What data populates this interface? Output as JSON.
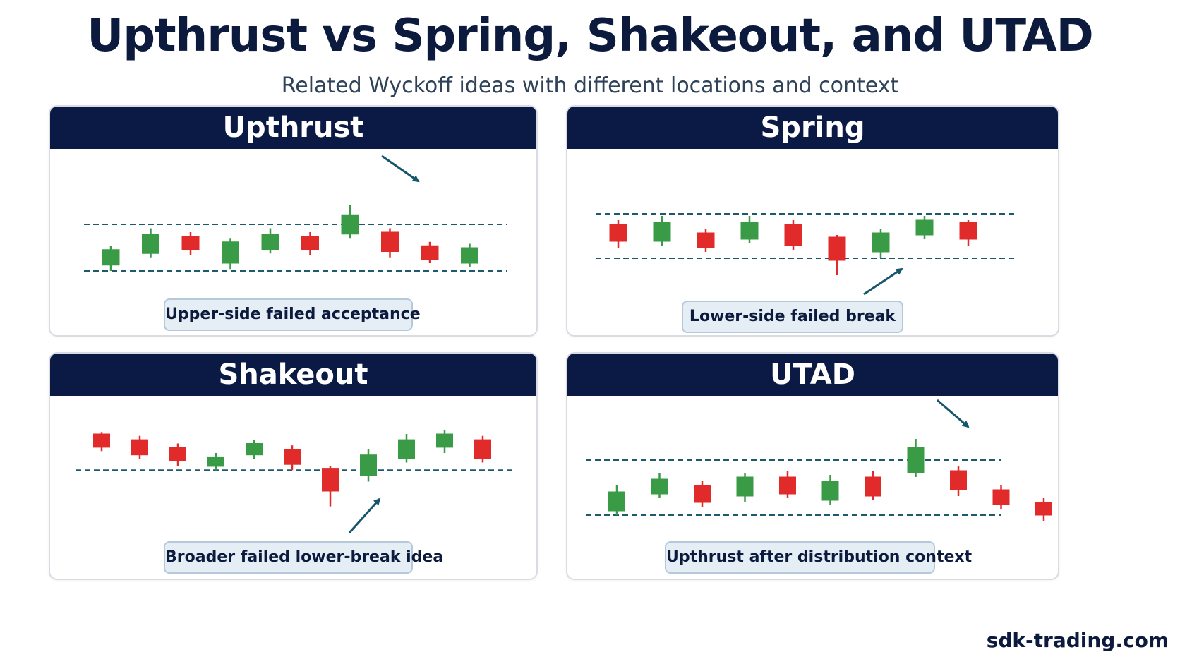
{
  "title": "Upthrust vs Spring, Shakeout, and UTAD",
  "subtitle": "Related Wyckoff ideas with different locations and context",
  "footer": "sdk-trading.com",
  "colors": {
    "navy": "#0b1a45",
    "bull": "#3a9b47",
    "bear": "#e12b2b",
    "dash": "#1d5a6b",
    "arrow": "#14566a",
    "caption_bg": "#e6eef5"
  },
  "panels": [
    {
      "id": "upthrust",
      "title": "Upthrust",
      "caption": "Upper-side failed acceptance",
      "candles": [
        {
          "dir": "up",
          "open": 1.5,
          "close": 5.5,
          "high": 6.5,
          "low": 0.0
        },
        {
          "dir": "up",
          "open": 4.5,
          "close": 9.5,
          "high": 11.0,
          "low": 3.5
        },
        {
          "dir": "down",
          "open": 9.0,
          "close": 5.5,
          "high": 10.0,
          "low": 4.0
        },
        {
          "dir": "up",
          "open": 2.0,
          "close": 7.5,
          "high": 8.5,
          "low": 0.5
        },
        {
          "dir": "up",
          "open": 5.5,
          "close": 9.5,
          "high": 11.0,
          "low": 4.5
        },
        {
          "dir": "down",
          "open": 9.0,
          "close": 5.5,
          "high": 10.0,
          "low": 4.0
        },
        {
          "dir": "up",
          "open": 9.5,
          "close": 14.5,
          "high": 17.0,
          "low": 8.5
        },
        {
          "dir": "down",
          "open": 10.0,
          "close": 5.0,
          "high": 11.0,
          "low": 3.5
        },
        {
          "dir": "down",
          "open": 6.5,
          "close": 3.0,
          "high": 7.5,
          "low": 2.0
        },
        {
          "dir": "up",
          "open": 2.0,
          "close": 6.0,
          "high": 7.0,
          "low": 1.0
        }
      ],
      "resistance": 12,
      "support": 0,
      "arrow": "down-right"
    },
    {
      "id": "spring",
      "title": "Spring",
      "caption": "Lower-side failed break",
      "candles": [
        {
          "dir": "down",
          "open": 8.5,
          "close": 4.5,
          "high": 9.5,
          "low": 3.0
        },
        {
          "dir": "up",
          "open": 4.5,
          "close": 9.0,
          "high": 10.5,
          "low": 3.5
        },
        {
          "dir": "down",
          "open": 6.5,
          "close": 3.0,
          "high": 7.5,
          "low": 2.0
        },
        {
          "dir": "up",
          "open": 5.0,
          "close": 9.0,
          "high": 10.5,
          "low": 4.0
        },
        {
          "dir": "down",
          "open": 8.5,
          "close": 3.5,
          "high": 9.5,
          "low": 2.5
        },
        {
          "dir": "down",
          "open": 5.5,
          "close": 0.0,
          "high": 6.0,
          "low": -3.5
        },
        {
          "dir": "up",
          "open": 2.0,
          "close": 6.5,
          "high": 7.5,
          "low": 0.5
        },
        {
          "dir": "up",
          "open": 6.0,
          "close": 9.5,
          "high": 10.5,
          "low": 5.0
        },
        {
          "dir": "down",
          "open": 9.0,
          "close": 5.0,
          "high": 9.5,
          "low": 3.5
        }
      ],
      "resistance": 11,
      "support": 0.5,
      "arrow": "up-right"
    },
    {
      "id": "shakeout",
      "title": "Shakeout",
      "caption": "Broader failed lower-break idea",
      "candles": [
        {
          "dir": "down",
          "open": 10.0,
          "close": 6.5,
          "high": 10.5,
          "low": 5.5
        },
        {
          "dir": "down",
          "open": 8.5,
          "close": 4.5,
          "high": 9.5,
          "low": 3.5
        },
        {
          "dir": "down",
          "open": 6.5,
          "close": 3.0,
          "high": 7.5,
          "low": 1.5
        },
        {
          "dir": "up",
          "open": 1.5,
          "close": 4.0,
          "high": 5.0,
          "low": 0.5
        },
        {
          "dir": "up",
          "open": 4.5,
          "close": 7.5,
          "high": 8.5,
          "low": 3.5
        },
        {
          "dir": "down",
          "open": 6.0,
          "close": 2.0,
          "high": 7.0,
          "low": 0.5
        },
        {
          "dir": "down",
          "open": 1.0,
          "close": -5.0,
          "high": 1.5,
          "low": -9.0
        },
        {
          "dir": "up",
          "open": -1.0,
          "close": 4.5,
          "high": 6.0,
          "low": -2.5
        },
        {
          "dir": "up",
          "open": 3.5,
          "close": 8.5,
          "high": 10.0,
          "low": 2.5
        },
        {
          "dir": "up",
          "open": 6.5,
          "close": 10.0,
          "high": 11.0,
          "low": 5.0
        },
        {
          "dir": "down",
          "open": 8.5,
          "close": 3.5,
          "high": 9.5,
          "low": 2.5
        }
      ],
      "support": 0.5,
      "arrow": "up-right"
    },
    {
      "id": "utad",
      "title": "UTAD",
      "caption": "Upthrust after distribution context",
      "candles": [
        {
          "dir": "up",
          "open": 1.0,
          "close": 5.5,
          "high": 7.0,
          "low": 0.0
        },
        {
          "dir": "up",
          "open": 5.0,
          "close": 8.5,
          "high": 10.0,
          "low": 4.0
        },
        {
          "dir": "down",
          "open": 7.0,
          "close": 3.0,
          "high": 8.0,
          "low": 2.0
        },
        {
          "dir": "up",
          "open": 4.5,
          "close": 9.0,
          "high": 10.0,
          "low": 3.0
        },
        {
          "dir": "down",
          "open": 9.0,
          "close": 5.0,
          "high": 10.5,
          "low": 4.0
        },
        {
          "dir": "up",
          "open": 3.5,
          "close": 8.0,
          "high": 9.5,
          "low": 2.5
        },
        {
          "dir": "down",
          "open": 9.0,
          "close": 4.5,
          "high": 10.5,
          "low": 3.5
        },
        {
          "dir": "up",
          "open": 10.0,
          "close": 16.0,
          "high": 18.0,
          "low": 9.0
        },
        {
          "dir": "down",
          "open": 10.5,
          "close": 6.0,
          "high": 11.5,
          "low": 4.5
        },
        {
          "dir": "down",
          "open": 6.0,
          "close": 2.5,
          "high": 7.0,
          "low": 1.5
        },
        {
          "dir": "down",
          "open": 3.0,
          "close": 0.0,
          "high": 4.0,
          "low": -1.5
        }
      ],
      "resistance": 13,
      "support": 0,
      "arrow": "down-right"
    }
  ]
}
